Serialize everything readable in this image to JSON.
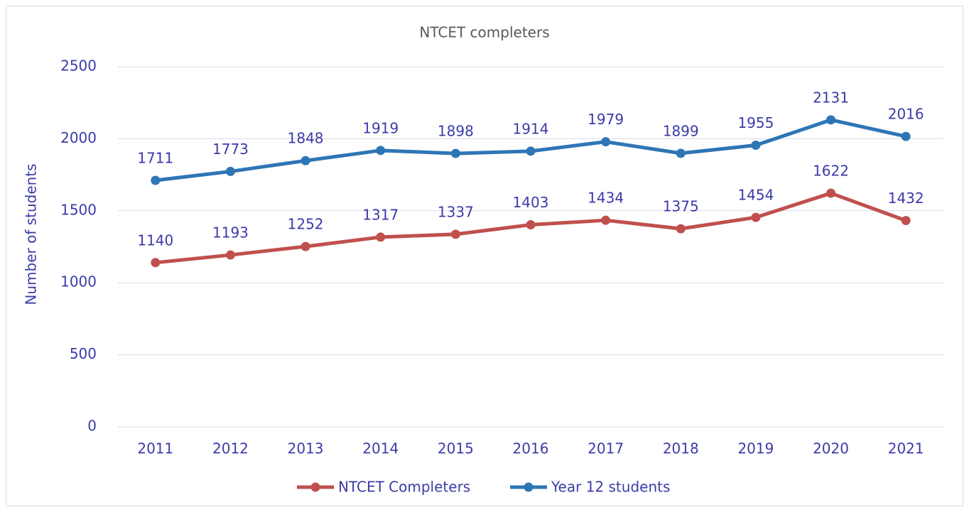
{
  "chart_data": {
    "type": "line",
    "title": "NTCET completers",
    "ylabel": "Number of students",
    "categories": [
      "2011",
      "2012",
      "2013",
      "2014",
      "2015",
      "2016",
      "2017",
      "2018",
      "2019",
      "2020",
      "2021"
    ],
    "series": [
      {
        "name": "NTCET Completers",
        "color": "#c0504d",
        "values": [
          1140,
          1193,
          1252,
          1317,
          1337,
          1403,
          1434,
          1375,
          1454,
          1622,
          1432
        ]
      },
      {
        "name": "Year 12 students",
        "color": "#2e75b6",
        "values": [
          1711,
          1773,
          1848,
          1919,
          1898,
          1914,
          1979,
          1899,
          1955,
          2131,
          2016
        ]
      }
    ],
    "ylim": [
      0,
      2500
    ],
    "yticks": [
      0,
      500,
      1000,
      1500,
      2000,
      2500
    ],
    "grid": true,
    "legend": "bottom"
  }
}
